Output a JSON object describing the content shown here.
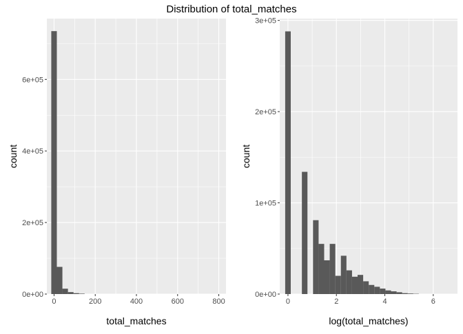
{
  "title": "Distribution of total_matches",
  "colors": {
    "panel_background": "#ebebeb",
    "grid_major": "#ffffff",
    "bar_fill": "#595959",
    "tick_text": "#4d4d4d"
  },
  "chart_data": [
    {
      "type": "bar",
      "xlabel": "total_matches",
      "ylabel": "count",
      "xlim": [
        -35,
        835
      ],
      "ylim": [
        0,
        770000
      ],
      "xticks": [
        0,
        200,
        400,
        600,
        800
      ],
      "xtick_labels": [
        "0",
        "200",
        "400",
        "600",
        "800"
      ],
      "yticks": [
        0,
        200000,
        400000,
        600000
      ],
      "ytick_labels": [
        "0e+00",
        "2e+05",
        "4e+05",
        "6e+05"
      ],
      "grid": true,
      "bins": [
        {
          "x0": -13.5,
          "x1": 13.5,
          "value": 735000
        },
        {
          "x0": 13.5,
          "x1": 40.5,
          "value": 76000
        },
        {
          "x0": 40.5,
          "x1": 67.5,
          "value": 15000
        },
        {
          "x0": 67.5,
          "x1": 94.5,
          "value": 5500
        },
        {
          "x0": 94.5,
          "x1": 121.5,
          "value": 2500
        },
        {
          "x0": 121.5,
          "x1": 148.5,
          "value": 1200
        }
      ]
    },
    {
      "type": "bar",
      "xlabel": "log(total_matches)",
      "ylabel": "count",
      "xlim": [
        -0.34,
        7.0
      ],
      "ylim": [
        0,
        302000
      ],
      "xticks": [
        0,
        2,
        4,
        6
      ],
      "xtick_labels": [
        "0",
        "2",
        "4",
        "6"
      ],
      "yticks": [
        0,
        100000,
        200000,
        300000
      ],
      "ytick_labels": [
        "0e+00",
        "1e+05",
        "2e+05",
        "3e+05"
      ],
      "grid": true,
      "bins": [
        {
          "x0": -0.115,
          "x1": 0.115,
          "value": 288000
        },
        {
          "x0": 0.115,
          "x1": 0.345,
          "value": 0
        },
        {
          "x0": 0.345,
          "x1": 0.575,
          "value": 0
        },
        {
          "x0": 0.575,
          "x1": 0.805,
          "value": 134000
        },
        {
          "x0": 0.805,
          "x1": 1.035,
          "value": 0
        },
        {
          "x0": 1.035,
          "x1": 1.265,
          "value": 81000
        },
        {
          "x0": 1.265,
          "x1": 1.495,
          "value": 55000
        },
        {
          "x0": 1.495,
          "x1": 1.725,
          "value": 37000
        },
        {
          "x0": 1.725,
          "x1": 1.955,
          "value": 55000
        },
        {
          "x0": 1.955,
          "x1": 2.185,
          "value": 20000
        },
        {
          "x0": 2.185,
          "x1": 2.415,
          "value": 42000
        },
        {
          "x0": 2.415,
          "x1": 2.645,
          "value": 26000
        },
        {
          "x0": 2.645,
          "x1": 2.875,
          "value": 19000
        },
        {
          "x0": 2.875,
          "x1": 3.105,
          "value": 21000
        },
        {
          "x0": 3.105,
          "x1": 3.335,
          "value": 14000
        },
        {
          "x0": 3.335,
          "x1": 3.565,
          "value": 10000
        },
        {
          "x0": 3.565,
          "x1": 3.795,
          "value": 8000
        },
        {
          "x0": 3.795,
          "x1": 4.025,
          "value": 6000
        },
        {
          "x0": 4.025,
          "x1": 4.255,
          "value": 4000
        },
        {
          "x0": 4.255,
          "x1": 4.485,
          "value": 3000
        },
        {
          "x0": 4.485,
          "x1": 4.715,
          "value": 2000
        },
        {
          "x0": 4.715,
          "x1": 4.945,
          "value": 1000
        },
        {
          "x0": 4.945,
          "x1": 5.175,
          "value": 600
        },
        {
          "x0": 5.175,
          "x1": 5.405,
          "value": 300
        }
      ]
    }
  ]
}
